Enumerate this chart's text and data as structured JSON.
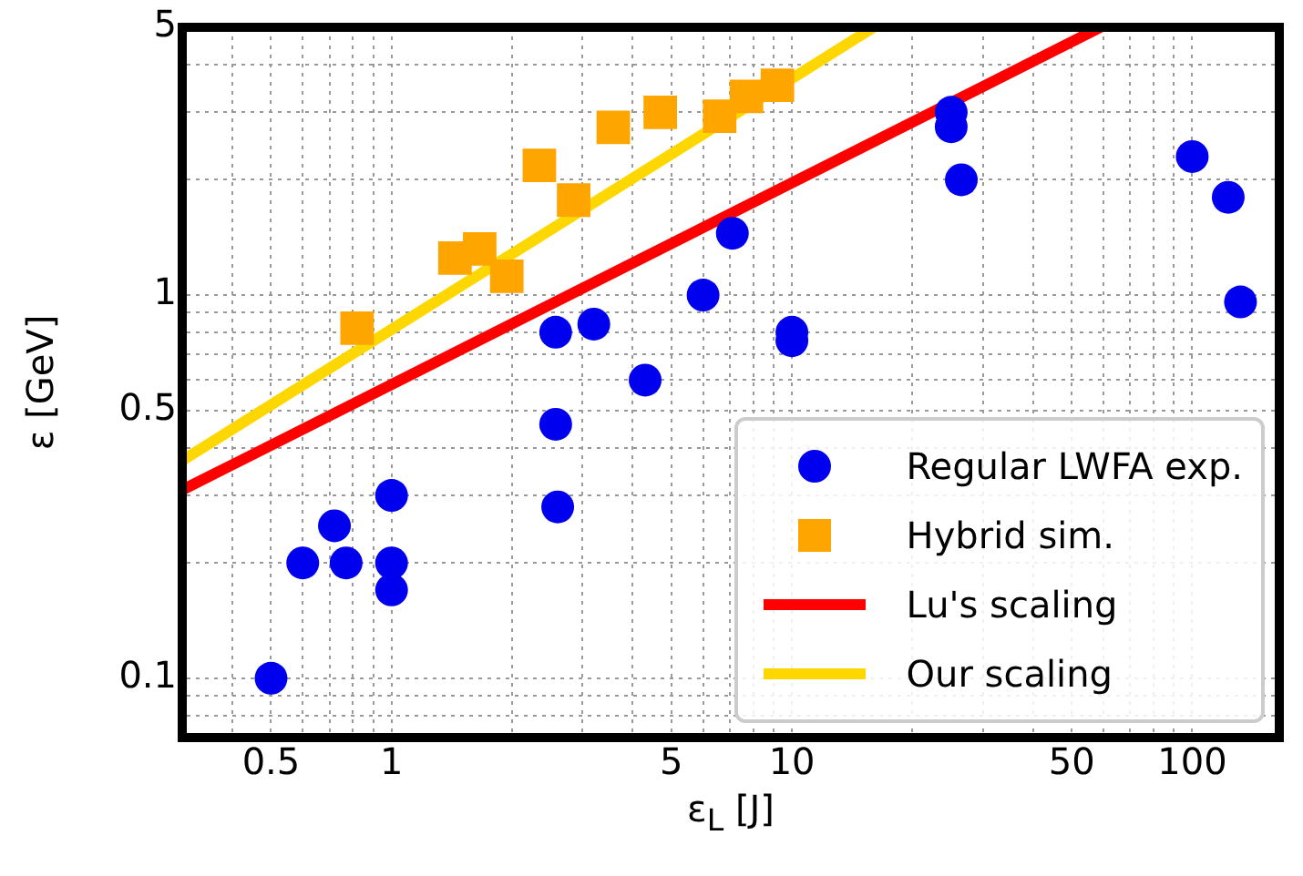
{
  "chart_data": {
    "type": "scatter",
    "xlabel": "ε$_{L}$ [J]",
    "ylabel": "ε [GeV]",
    "log": "xy",
    "grid": true,
    "legend": "bottom right",
    "xlim": [
      0.3,
      165
    ],
    "ylim": [
      0.07,
      5
    ],
    "xticks": [
      {
        "value": 0.4,
        "label": null
      },
      0.5,
      {
        "value": 0.6,
        "label": null
      },
      {
        "value": 0.7,
        "label": null
      },
      {
        "value": 0.8,
        "label": null
      },
      {
        "value": 0.9,
        "label": null
      },
      1,
      {
        "value": 2,
        "label": null
      },
      {
        "value": 3,
        "label": null
      },
      {
        "value": 4,
        "label": null
      },
      5,
      {
        "value": 6,
        "label": null
      },
      {
        "value": 7,
        "label": null
      },
      {
        "value": 8,
        "label": null
      },
      {
        "value": 9,
        "label": null
      },
      10,
      {
        "value": 20,
        "label": null
      },
      {
        "value": 30,
        "label": null
      },
      {
        "value": 40,
        "label": null
      },
      50,
      {
        "value": 60,
        "label": null
      },
      {
        "value": 70,
        "label": null
      },
      {
        "value": 80,
        "label": null
      },
      {
        "value": 90,
        "label": null
      },
      100
    ],
    "yticks": [
      {
        "value": 0.08,
        "label": null
      },
      {
        "value": 0.09,
        "label": null
      },
      0.1,
      {
        "value": 0.2,
        "label": null
      },
      {
        "value": 0.3,
        "label": null
      },
      {
        "value": 0.4,
        "label": null
      },
      0.5,
      {
        "value": 0.6,
        "label": null
      },
      {
        "value": 0.7,
        "label": null
      },
      {
        "value": 0.8,
        "label": null
      },
      {
        "value": 0.9,
        "label": null
      },
      1,
      {
        "value": 2,
        "label": null
      },
      {
        "value": 3,
        "label": null
      },
      {
        "value": 4,
        "label": null
      },
      5
    ],
    "series": [
      {
        "name": "Regular LWFA exp.",
        "type": "scatter",
        "marker": "circle",
        "color": "#0000ee",
        "x": [
          0.5,
          0.6,
          0.72,
          0.77,
          1,
          1,
          1,
          2.57,
          2.6,
          2.57,
          3.2,
          4.3,
          6,
          7.1,
          10,
          10,
          25,
          25,
          26.5,
          100,
          123,
          132
        ],
        "values": [
          0.1,
          0.2,
          0.25,
          0.2,
          0.3,
          0.2,
          0.17,
          0.46,
          0.28,
          0.8,
          0.84,
          0.6,
          1,
          1.45,
          0.8,
          0.76,
          3,
          2.75,
          2,
          2.3,
          1.8,
          0.96
        ]
      },
      {
        "name": "Hybrid sim.",
        "type": "scatter",
        "marker": "square",
        "color": "#ffa500",
        "x": [
          0.82,
          1.44,
          1.66,
          1.94,
          2.34,
          2.85,
          3.58,
          4.69,
          6.6,
          7.7,
          9.2
        ],
        "values": [
          0.82,
          1.25,
          1.32,
          1.12,
          2.18,
          1.77,
          2.74,
          3,
          2.93,
          3.3,
          3.53
        ]
      },
      {
        "name": "Lu's scaling",
        "type": "line",
        "marker": "none",
        "color": "#ff0000",
        "x": [
          0.3,
          59
        ],
        "values": [
          0.31,
          5
        ]
      },
      {
        "name": "Our scaling",
        "type": "line",
        "marker": "none",
        "color": "#ffd700",
        "x": [
          0.3,
          16
        ],
        "values": [
          0.37,
          5
        ]
      }
    ]
  }
}
